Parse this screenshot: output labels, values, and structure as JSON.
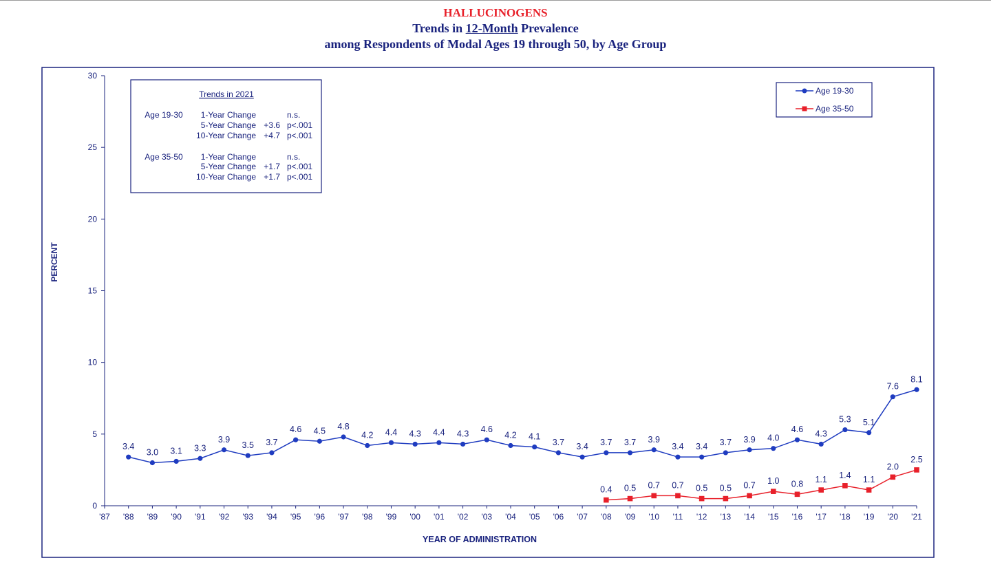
{
  "header": {
    "title": "HALLUCINOGENS",
    "subtitle_prefix": "Trends in ",
    "subtitle_underlined": "12-Month",
    "subtitle_suffix": " Prevalence",
    "subtitle2": "among Respondents of Modal Ages 19 through 50, by Age Group"
  },
  "colors": {
    "navy": "#1a237e",
    "blue": "#1f3cc0",
    "red": "#e8202a"
  },
  "trends": {
    "heading": "Trends in 2021",
    "groups": [
      {
        "label": "Age 19-30",
        "rows": [
          {
            "name": "1-Year Change",
            "change": "",
            "p": "n.s."
          },
          {
            "name": "5-Year Change",
            "change": "+3.6",
            "p": "p<.001"
          },
          {
            "name": "10-Year Change",
            "change": "+4.7",
            "p": "p<.001"
          }
        ]
      },
      {
        "label": "Age 35-50",
        "rows": [
          {
            "name": "1-Year Change",
            "change": "",
            "p": "n.s."
          },
          {
            "name": "5-Year Change",
            "change": "+1.7",
            "p": "p<.001"
          },
          {
            "name": "10-Year Change",
            "change": "+1.7",
            "p": "p<.001"
          }
        ]
      }
    ]
  },
  "chart_data": {
    "type": "line",
    "title": "HALLUCINOGENS",
    "xlabel": "YEAR OF ADMINISTRATION",
    "ylabel": "PERCENT",
    "ylim": [
      0,
      30
    ],
    "yticks": [
      "0",
      "5",
      "10",
      "15",
      "20",
      "25",
      "30"
    ],
    "categories": [
      "'87",
      "'88",
      "'89",
      "'90",
      "'91",
      "'92",
      "'93",
      "'94",
      "'95",
      "'96",
      "'97",
      "'98",
      "'99",
      "'00",
      "'01",
      "'02",
      "'03",
      "'04",
      "'05",
      "'06",
      "'07",
      "'08",
      "'09",
      "'10",
      "'11",
      "'12",
      "'13",
      "'14",
      "'15",
      "'16",
      "'17",
      "'18",
      "'19",
      "'20",
      "'21"
    ],
    "legend_position": "top-right",
    "series": [
      {
        "name": "Age 19-30",
        "color": "#1f3cc0",
        "marker": "circle",
        "values": [
          null,
          3.4,
          3.0,
          3.1,
          3.3,
          3.9,
          3.5,
          3.7,
          4.6,
          4.5,
          4.8,
          4.2,
          4.4,
          4.3,
          4.4,
          4.3,
          4.6,
          4.2,
          4.1,
          3.7,
          3.4,
          3.7,
          3.7,
          3.9,
          3.4,
          3.4,
          3.7,
          3.9,
          4.0,
          4.6,
          4.3,
          5.3,
          5.1,
          7.6,
          8.1
        ]
      },
      {
        "name": "Age 35-50",
        "color": "#e8202a",
        "marker": "square",
        "values": [
          null,
          null,
          null,
          null,
          null,
          null,
          null,
          null,
          null,
          null,
          null,
          null,
          null,
          null,
          null,
          null,
          null,
          null,
          null,
          null,
          null,
          0.4,
          0.5,
          0.7,
          0.7,
          0.5,
          0.5,
          0.7,
          1.0,
          0.8,
          1.1,
          1.4,
          1.1,
          2.0,
          2.5
        ]
      }
    ]
  }
}
